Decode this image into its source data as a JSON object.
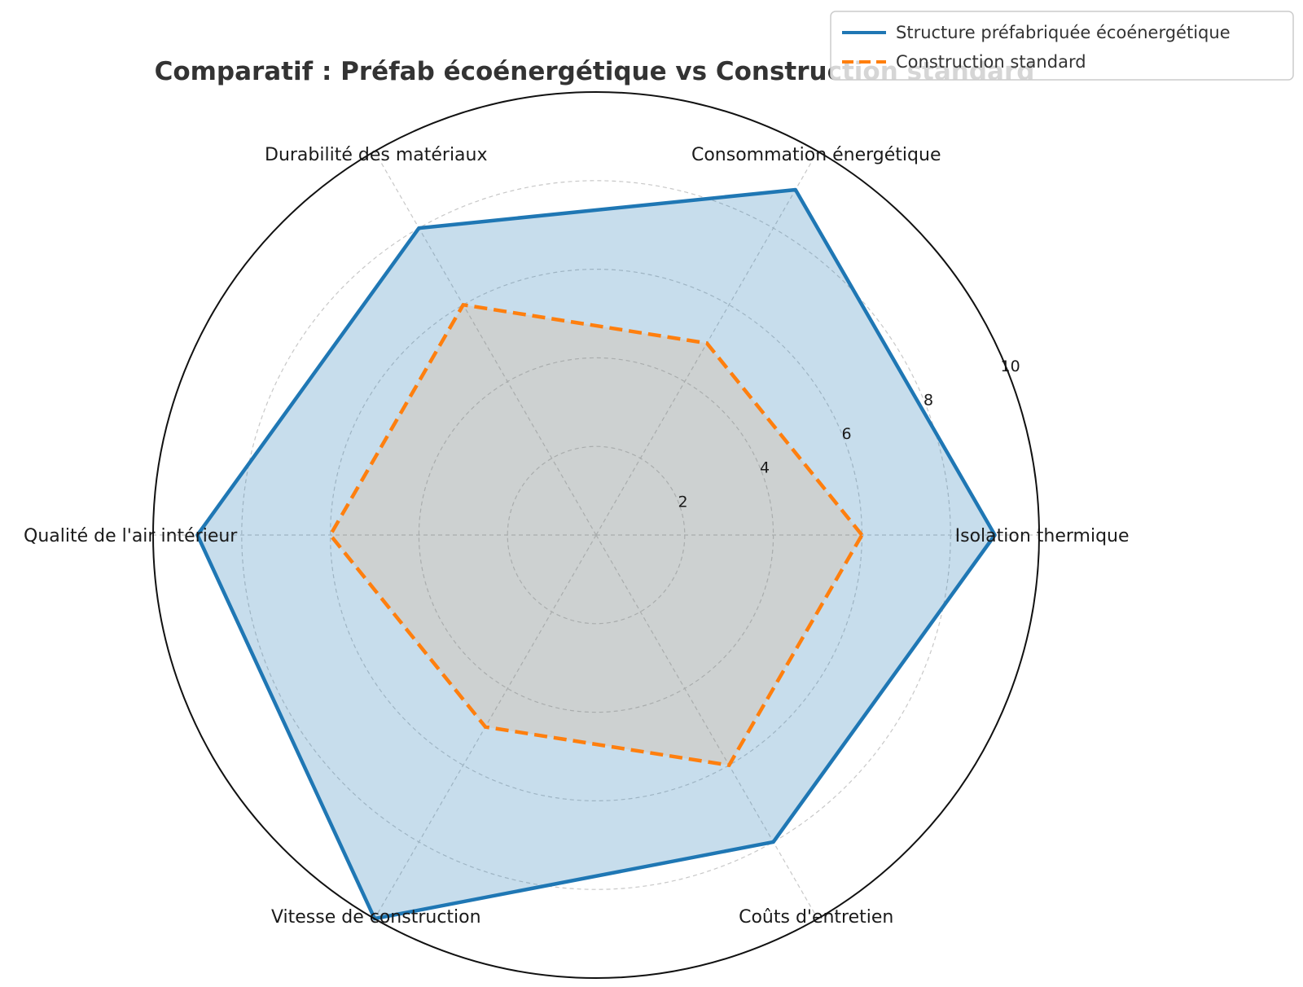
{
  "chart_data": {
    "type": "radar",
    "title": "Comparatif : Préfab écoénergétique vs Construction standard",
    "categories": [
      "Isolation thermique",
      "Consommation énergétique",
      "Durabilité des matériaux",
      "Qualité de l'air intérieur",
      "Vitesse de construction",
      "Coûts d'entretien"
    ],
    "series": [
      {
        "name": "Structure préfabriquée écoénergétique",
        "values": [
          9,
          9,
          8,
          9,
          10,
          8
        ],
        "color": "#1f77b4",
        "line_style": "solid",
        "fill_color": "#1f77b4",
        "fill_opacity": 0.25
      },
      {
        "name": "Construction standard",
        "values": [
          6,
          5,
          6,
          6,
          5,
          6
        ],
        "color": "#ff7f0e",
        "line_style": "dashed",
        "fill_color": "#ff7f0e",
        "fill_opacity": 0.12
      }
    ],
    "rlim": [
      0,
      10
    ],
    "r_ticks": [
      2,
      4,
      6,
      8,
      10
    ],
    "grid": true,
    "legend_position": "top-right"
  }
}
